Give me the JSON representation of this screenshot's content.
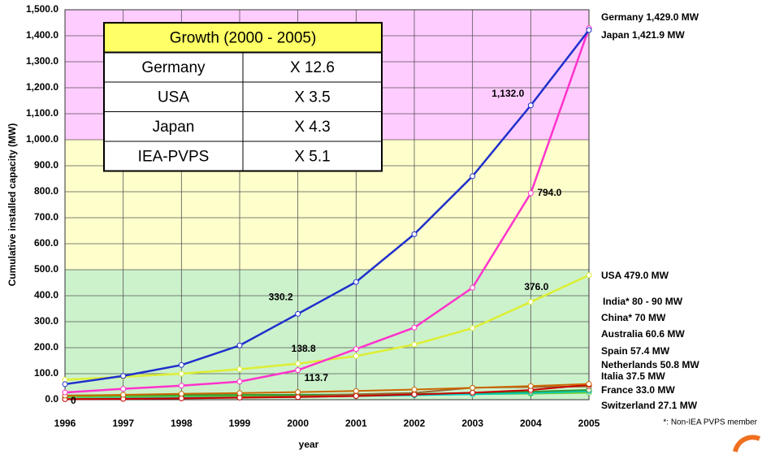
{
  "chart_data": {
    "type": "line",
    "x_label": "year",
    "y_label": "Cumulative installed capacity (MW)",
    "x": [
      1996,
      1997,
      1998,
      1999,
      2000,
      2001,
      2002,
      2003,
      2004,
      2005
    ],
    "xlim": [
      1996,
      2005
    ],
    "xticks": [
      1996,
      1997,
      1998,
      1999,
      2000,
      2001,
      2002,
      2003,
      2004,
      2005
    ],
    "ylim": [
      0,
      1500
    ],
    "yticks": [
      {
        "value": 0,
        "label": "0.0"
      },
      {
        "value": 100,
        "label": "100.0"
      },
      {
        "value": 200,
        "label": "200.0"
      },
      {
        "value": 300,
        "label": "300.0"
      },
      {
        "value": 400,
        "label": "400.0"
      },
      {
        "value": 500,
        "label": "500.0"
      },
      {
        "value": 600,
        "label": "600.0"
      },
      {
        "value": 700,
        "label": "700.0"
      },
      {
        "value": 800,
        "label": "800.0"
      },
      {
        "value": 900,
        "label": "900.0"
      },
      {
        "value": 1000,
        "label": "1,000.0"
      },
      {
        "value": 1100,
        "label": "1,100.0"
      },
      {
        "value": 1200,
        "label": "1,200.0"
      },
      {
        "value": 1300,
        "label": "1,300.0"
      },
      {
        "value": 1400,
        "label": "1,400.0"
      },
      {
        "value": 1500,
        "label": "1,500.0"
      }
    ],
    "grid": true,
    "bands": [
      {
        "from": 0,
        "to": 500,
        "color": "#ccf2cc"
      },
      {
        "from": 500,
        "to": 1000,
        "color": "#ffffcc"
      },
      {
        "from": 1000,
        "to": 1500,
        "color": "#ffccff"
      }
    ],
    "series": [
      {
        "name": "Japan",
        "label": "Japan 1,421.9 MW",
        "color": "#1f2fcc",
        "values": [
          59.6,
          91.3,
          133.4,
          208.6,
          330.2,
          452.8,
          636.8,
          859.6,
          1132.0,
          1421.9
        ],
        "value_labels": [
          null,
          null,
          null,
          null,
          "330.2",
          null,
          null,
          null,
          "1,132.0",
          null
        ]
      },
      {
        "name": "Germany",
        "label": "Germany 1,429.0 MW",
        "color": "#ff33cc",
        "values": [
          27.9,
          41.9,
          53.9,
          69.5,
          113.7,
          194.6,
          277.3,
          430.9,
          794.0,
          1429.0
        ],
        "value_labels": [
          null,
          null,
          null,
          null,
          "113.7",
          null,
          null,
          null,
          "794.0",
          null
        ]
      },
      {
        "name": "USA",
        "label": "USA 479.0 MW",
        "color": "#ddee33",
        "values": [
          76.5,
          88.2,
          100.1,
          117.3,
          138.8,
          167.8,
          212.2,
          275.2,
          376.0,
          479.0
        ],
        "value_labels": [
          null,
          null,
          null,
          null,
          "138.8",
          null,
          null,
          null,
          "376.0",
          null
        ]
      },
      {
        "name": "Australia",
        "label": "Australia 60.6 MW",
        "color": "#cc6600",
        "values": [
          15.7,
          18.7,
          22.5,
          25.3,
          29.2,
          33.6,
          39.1,
          45.6,
          52.3,
          60.6
        ]
      },
      {
        "name": "Spain",
        "label": "Spain 57.4 MW",
        "color": "#cc0000",
        "values": [
          2,
          3,
          5,
          8,
          10,
          14,
          20,
          27,
          37,
          57.4
        ]
      },
      {
        "name": "Netherlands",
        "label": "Netherlands 50.8 MW",
        "color": "#996633",
        "values": [
          3,
          4,
          6,
          9,
          13,
          21,
          26,
          46,
          49,
          50.8
        ]
      },
      {
        "name": "Italia",
        "label": "Italia 37.5 MW",
        "color": "#339933",
        "values": [
          16,
          17,
          18,
          18.5,
          19,
          20,
          22,
          26,
          31,
          37.5
        ]
      },
      {
        "name": "France",
        "label": "France 33.0 MW",
        "color": "#00cccc",
        "values": [
          4,
          6,
          8,
          9,
          11,
          14,
          17,
          21,
          26,
          33.0
        ]
      },
      {
        "name": "Switzerland",
        "label": "Switzerland 27.1 MW",
        "color": "#66cc33",
        "values": [
          11,
          12,
          13,
          13.5,
          15,
          17,
          19,
          21,
          23,
          27.1
        ]
      }
    ],
    "annotations": [
      "India* 80 - 90 MW",
      "China* 70 MW",
      "0"
    ],
    "footnote": "*: Non-IEA PVPS member",
    "inset_table": {
      "title": "Growth (2000 - 2005)",
      "rows": [
        [
          "Germany",
          "X 12.6"
        ],
        [
          "USA",
          "X 3.5"
        ],
        [
          "Japan",
          "X 4.3"
        ],
        [
          "IEA-PVPS",
          "X 5.1"
        ]
      ]
    }
  }
}
